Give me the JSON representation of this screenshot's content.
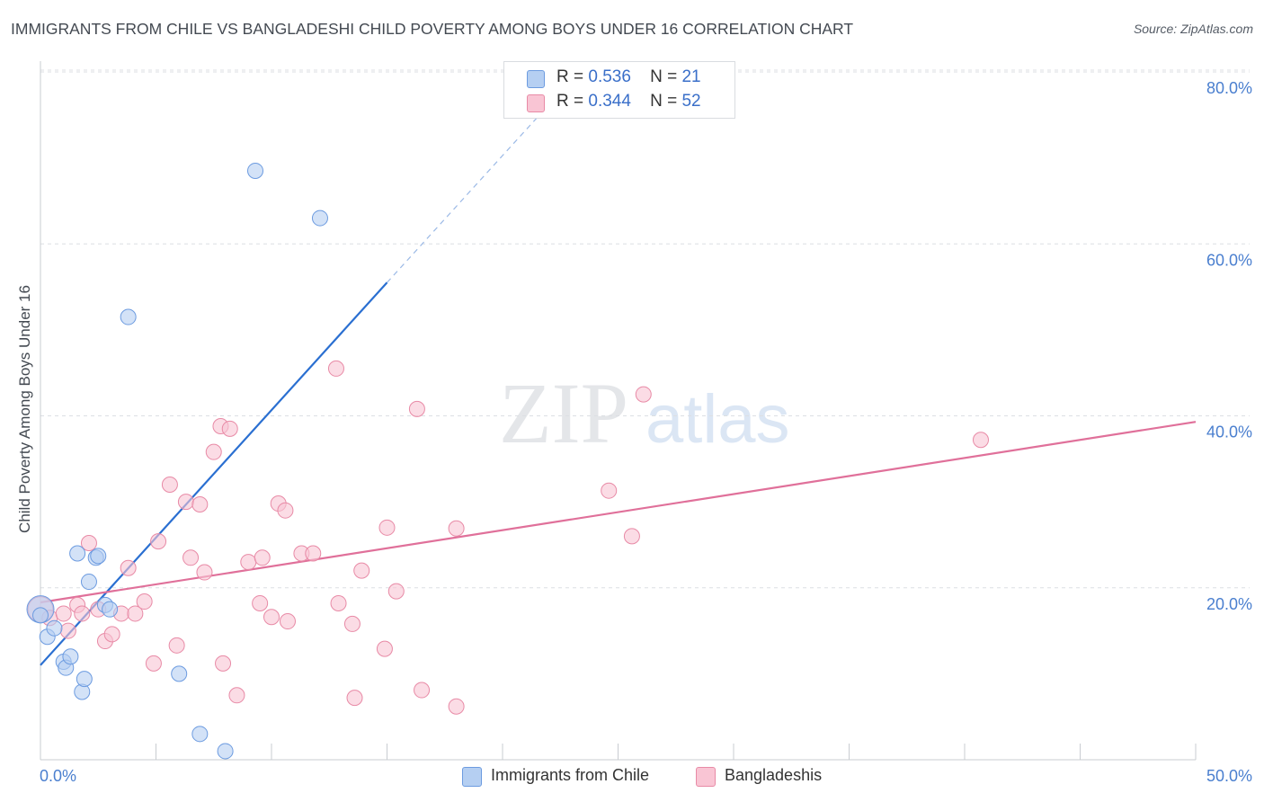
{
  "title": "IMMIGRANTS FROM CHILE VS BANGLADESHI CHILD POVERTY AMONG BOYS UNDER 16 CORRELATION CHART",
  "source": "Source: ZipAtlas.com",
  "watermark": {
    "zip": "ZIP",
    "atlas": "atlas"
  },
  "legend": {
    "rows": [
      {
        "r_label": "R =",
        "r_value": "0.536",
        "n_label": "N =",
        "n_value": "21"
      },
      {
        "r_label": "R =",
        "r_value": "0.344",
        "n_label": "N =",
        "n_value": "52"
      }
    ]
  },
  "bottom_legend": [
    "Immigrants from Chile",
    "Bangladeshis"
  ],
  "colors": {
    "chile_fill": "#b5cff2",
    "chile_stroke": "#6c9be0",
    "chile_line": "#2a6fd1",
    "bangla_fill": "#f9c5d4",
    "bangla_stroke": "#e88aa6",
    "bangla_line": "#e0709a",
    "tick_label": "#4a7fcf",
    "grid": "#dcdfe3"
  },
  "chart_data": {
    "type": "scatter",
    "title": "IMMIGRANTS FROM CHILE VS BANGLADESHI CHILD POVERTY AMONG BOYS UNDER 16 CORRELATION CHART",
    "xlabel": "",
    "ylabel": "Child Poverty Among Boys Under 16",
    "xlim": [
      0,
      50
    ],
    "ylim": [
      0,
      80
    ],
    "x_tick_labels": [
      "0.0%",
      "50.0%"
    ],
    "y_ticks": [
      20,
      40,
      60,
      80
    ],
    "y_tick_labels": [
      "20.0%",
      "40.0%",
      "60.0%",
      "80.0%"
    ],
    "grid": true,
    "legend_position": "top-center",
    "series": [
      {
        "name": "Immigrants from Chile",
        "R": 0.536,
        "N": 21,
        "points": [
          [
            0.0,
            17.5
          ],
          [
            0.3,
            14.3
          ],
          [
            0.6,
            15.3
          ],
          [
            1.0,
            11.4
          ],
          [
            1.1,
            10.7
          ],
          [
            1.3,
            12.0
          ],
          [
            1.6,
            24.0
          ],
          [
            1.8,
            7.9
          ],
          [
            1.9,
            9.4
          ],
          [
            2.1,
            20.7
          ],
          [
            2.4,
            23.5
          ],
          [
            2.5,
            23.7
          ],
          [
            2.8,
            18.0
          ],
          [
            3.0,
            17.5
          ],
          [
            3.8,
            51.5
          ],
          [
            6.0,
            10.0
          ],
          [
            6.9,
            3.0
          ],
          [
            8.0,
            1.0
          ],
          [
            9.3,
            68.5
          ],
          [
            12.1,
            63.0
          ],
          [
            0.0,
            16.8
          ]
        ],
        "trend": {
          "x": [
            0.0,
            15.0
          ],
          "y": [
            11.0,
            55.5
          ]
        },
        "trend_extension": {
          "x": [
            15.0,
            21.5
          ],
          "y": [
            55.5,
            74.7
          ]
        }
      },
      {
        "name": "Bangladeshis",
        "R": 0.344,
        "N": 52,
        "points": [
          [
            0.0,
            17.5
          ],
          [
            0.4,
            16.5
          ],
          [
            1.0,
            17.0
          ],
          [
            1.2,
            15.0
          ],
          [
            1.6,
            18.0
          ],
          [
            1.8,
            17.0
          ],
          [
            2.1,
            25.2
          ],
          [
            2.5,
            17.5
          ],
          [
            2.8,
            13.8
          ],
          [
            3.1,
            14.6
          ],
          [
            3.5,
            17.0
          ],
          [
            3.8,
            22.3
          ],
          [
            4.1,
            17.0
          ],
          [
            4.5,
            18.4
          ],
          [
            4.9,
            11.2
          ],
          [
            5.1,
            25.4
          ],
          [
            5.6,
            32.0
          ],
          [
            5.9,
            13.3
          ],
          [
            6.3,
            30.0
          ],
          [
            6.5,
            23.5
          ],
          [
            6.9,
            29.7
          ],
          [
            7.1,
            21.8
          ],
          [
            7.5,
            35.8
          ],
          [
            7.8,
            38.8
          ],
          [
            7.9,
            11.2
          ],
          [
            8.2,
            38.5
          ],
          [
            8.5,
            7.5
          ],
          [
            9.0,
            23.0
          ],
          [
            9.5,
            18.2
          ],
          [
            9.6,
            23.5
          ],
          [
            10.0,
            16.6
          ],
          [
            10.3,
            29.8
          ],
          [
            10.6,
            29.0
          ],
          [
            10.7,
            16.1
          ],
          [
            11.3,
            24.0
          ],
          [
            11.8,
            24.0
          ],
          [
            12.8,
            45.5
          ],
          [
            12.9,
            18.2
          ],
          [
            13.5,
            15.8
          ],
          [
            13.6,
            7.2
          ],
          [
            13.9,
            22.0
          ],
          [
            14.9,
            12.9
          ],
          [
            15.0,
            27.0
          ],
          [
            15.4,
            19.6
          ],
          [
            16.3,
            40.8
          ],
          [
            16.5,
            8.1
          ],
          [
            18.0,
            26.9
          ],
          [
            18.0,
            6.2
          ],
          [
            24.6,
            31.3
          ],
          [
            25.6,
            26.0
          ],
          [
            26.1,
            42.5
          ],
          [
            40.7,
            37.2
          ]
        ],
        "trend": {
          "x": [
            0.0,
            50.0
          ],
          "y": [
            18.3,
            39.3
          ]
        }
      }
    ]
  }
}
